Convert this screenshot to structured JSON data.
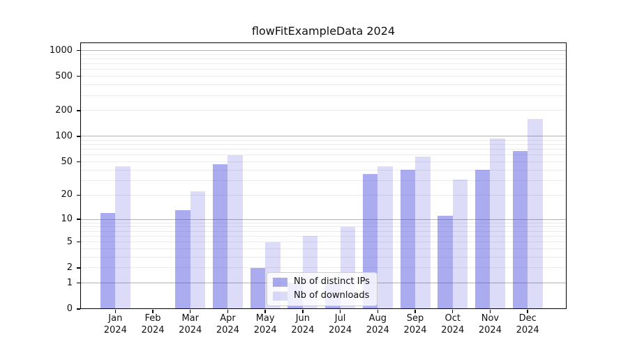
{
  "chart_data": {
    "type": "bar",
    "title": "flowFitExampleData 2024",
    "year": "2024",
    "categories": [
      "Jan",
      "Feb",
      "Mar",
      "Apr",
      "May",
      "Jun",
      "Jul",
      "Aug",
      "Sep",
      "Oct",
      "Nov",
      "Dec"
    ],
    "series": [
      {
        "key": "distinct-ips",
        "name": "Nb of distinct IPs",
        "color": "rgba(68,68,221,0.45)",
        "values": [
          12,
          0,
          13,
          47,
          2,
          1,
          1,
          36,
          40,
          11,
          40,
          67
        ]
      },
      {
        "key": "downloads",
        "name": "Nb of downloads",
        "color": "rgba(68,68,221,0.19)",
        "values": [
          44,
          0,
          22,
          60,
          5,
          6,
          8,
          44,
          58,
          31,
          94,
          160
        ]
      }
    ],
    "xlabel": "",
    "ylabel": "",
    "yscale": "log1p",
    "ylim": [
      0,
      1240
    ],
    "yticks": [
      0,
      1,
      2,
      5,
      10,
      20,
      50,
      100,
      200,
      500,
      1000
    ],
    "y_major_gridlines": [
      1,
      10,
      100,
      1000
    ],
    "y_minor_gridlines": [
      2,
      3,
      4,
      5,
      6,
      7,
      8,
      9,
      20,
      30,
      40,
      50,
      60,
      70,
      80,
      90,
      200,
      300,
      400,
      500,
      600,
      700,
      800,
      900
    ],
    "grid": true,
    "legend_position": "lower-center-inside",
    "colors": {
      "spine": "#000000",
      "major_grid": "#b1b1b1",
      "minor_grid": "#ebebeb",
      "legend_border": "#cccccc"
    }
  }
}
